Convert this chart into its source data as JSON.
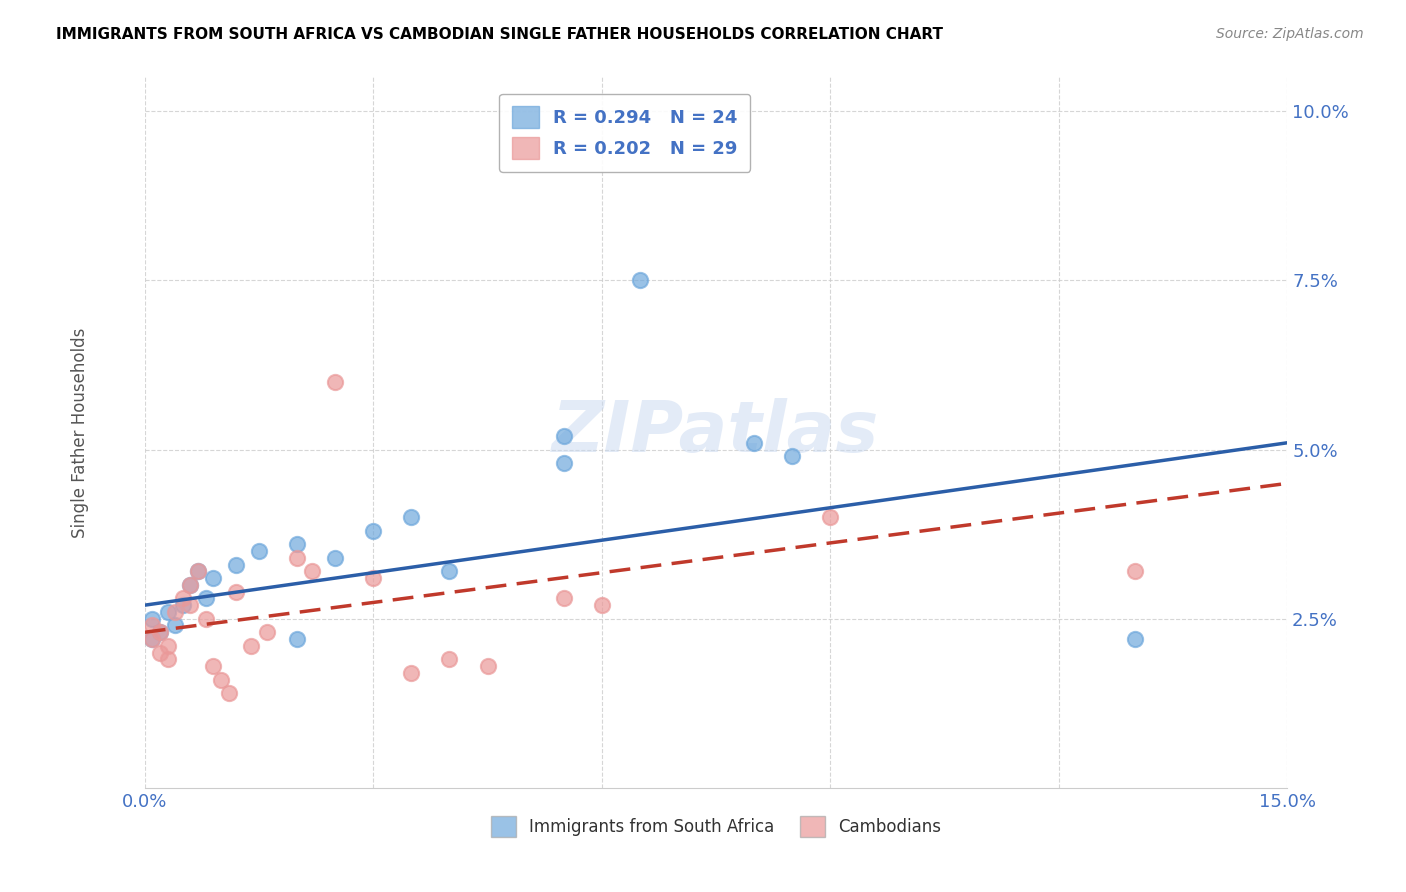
{
  "title": "IMMIGRANTS FROM SOUTH AFRICA VS CAMBODIAN SINGLE FATHER HOUSEHOLDS CORRELATION CHART",
  "source": "Source: ZipAtlas.com",
  "xlabel": "",
  "ylabel": "Single Father Households",
  "xlim": [
    0.0,
    0.15
  ],
  "ylim": [
    0.0,
    0.105
  ],
  "xticks": [
    0.0,
    0.03,
    0.06,
    0.09,
    0.12,
    0.15
  ],
  "yticks": [
    0.025,
    0.05,
    0.075,
    0.1
  ],
  "ytick_labels": [
    "2.5%",
    "5.0%",
    "7.5%",
    "10.0%"
  ],
  "xtick_labels": [
    "0.0%",
    "",
    "",
    "",
    "",
    "15.0%"
  ],
  "blue_color": "#6fa8dc",
  "pink_color": "#ea9999",
  "blue_line_color": "#2b5ea8",
  "pink_line_color": "#c0392b",
  "R_blue": 0.294,
  "N_blue": 24,
  "R_pink": 0.202,
  "N_pink": 29,
  "blue_x": [
    0.001,
    0.001,
    0.002,
    0.003,
    0.004,
    0.005,
    0.006,
    0.007,
    0.008,
    0.009,
    0.012,
    0.015,
    0.02,
    0.02,
    0.025,
    0.03,
    0.035,
    0.04,
    0.055,
    0.055,
    0.065,
    0.08,
    0.085,
    0.13
  ],
  "blue_y": [
    0.022,
    0.025,
    0.023,
    0.026,
    0.024,
    0.027,
    0.03,
    0.032,
    0.028,
    0.031,
    0.033,
    0.035,
    0.022,
    0.036,
    0.034,
    0.038,
    0.04,
    0.032,
    0.052,
    0.048,
    0.075,
    0.051,
    0.049,
    0.022
  ],
  "pink_x": [
    0.001,
    0.001,
    0.002,
    0.002,
    0.003,
    0.003,
    0.004,
    0.005,
    0.006,
    0.006,
    0.007,
    0.008,
    0.009,
    0.01,
    0.011,
    0.012,
    0.014,
    0.016,
    0.02,
    0.022,
    0.025,
    0.03,
    0.035,
    0.04,
    0.045,
    0.055,
    0.06,
    0.09,
    0.13
  ],
  "pink_y": [
    0.022,
    0.024,
    0.02,
    0.023,
    0.019,
    0.021,
    0.026,
    0.028,
    0.03,
    0.027,
    0.032,
    0.025,
    0.018,
    0.016,
    0.014,
    0.029,
    0.021,
    0.023,
    0.034,
    0.032,
    0.06,
    0.031,
    0.017,
    0.019,
    0.018,
    0.028,
    0.027,
    0.04,
    0.032
  ],
  "blue_trend_x": [
    0.0,
    0.15
  ],
  "blue_trend_y_start": 0.027,
  "blue_trend_y_end": 0.051,
  "pink_trend_x": [
    0.0,
    0.15
  ],
  "pink_trend_y_start": 0.023,
  "pink_trend_y_end": 0.045,
  "watermark": "ZIPatlas",
  "bg_color": "#ffffff",
  "grid_color": "#cccccc",
  "legend_label_blue": "Immigrants from South Africa",
  "legend_label_pink": "Cambodians",
  "title_color": "#000000",
  "axis_color": "#4472c4",
  "marker_size": 120
}
